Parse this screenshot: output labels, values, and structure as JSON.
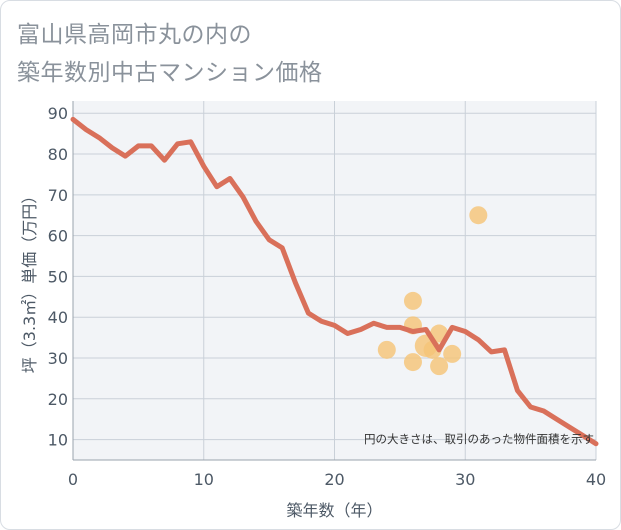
{
  "header": {
    "title_line1": "富山県高岡市丸の内の",
    "title_line2": "築年数別中古マンション価格"
  },
  "colors": {
    "line": "#d9705a",
    "point": "#f5c478",
    "grid": "#c9d0d8",
    "plot_bg": "#f2f4f7"
  },
  "chart_data": {
    "type": "line+scatter",
    "xlabel": "築年数（年）",
    "ylabel": "坪（3.3㎡）単価（万円）",
    "xlim": [
      0,
      40
    ],
    "ylim": [
      5,
      93
    ],
    "xticks": [
      0,
      10,
      20,
      30,
      40
    ],
    "yticks": [
      10,
      20,
      30,
      40,
      50,
      60,
      70,
      80,
      90
    ],
    "annotation": "円の大きさは、取引のあった物件面積を示す",
    "series": [
      {
        "name": "average-price",
        "type": "line",
        "x": [
          0,
          1,
          2,
          3,
          4,
          5,
          6,
          7,
          8,
          9,
          10,
          11,
          12,
          13,
          14,
          15,
          16,
          17,
          18,
          19,
          20,
          21,
          22,
          23,
          24,
          25,
          26,
          27,
          28,
          29,
          30,
          31,
          32,
          33,
          34,
          35,
          36,
          37,
          38,
          39,
          40
        ],
        "y": [
          88.5,
          86,
          84,
          81.5,
          79.5,
          82,
          82,
          78.5,
          82.5,
          83,
          77,
          72,
          74,
          69.5,
          63.5,
          59,
          57,
          48.5,
          41,
          39,
          38,
          36,
          37,
          38.5,
          37.5,
          37.5,
          36.5,
          37,
          32,
          37.5,
          36.5,
          34.5,
          31.5,
          32,
          22,
          18,
          17,
          15,
          13,
          11,
          9
        ]
      },
      {
        "name": "transactions",
        "type": "scatter",
        "points": [
          {
            "x": 24,
            "y": 32,
            "size": 1.0
          },
          {
            "x": 26,
            "y": 44,
            "size": 1.0
          },
          {
            "x": 26,
            "y": 38,
            "size": 1.0
          },
          {
            "x": 26,
            "y": 29,
            "size": 1.0
          },
          {
            "x": 27,
            "y": 33,
            "size": 1.25
          },
          {
            "x": 27.5,
            "y": 32,
            "size": 1.0
          },
          {
            "x": 28,
            "y": 36,
            "size": 1.0
          },
          {
            "x": 28,
            "y": 28,
            "size": 1.0
          },
          {
            "x": 29,
            "y": 31,
            "size": 1.0
          },
          {
            "x": 31,
            "y": 65,
            "size": 1.0
          }
        ]
      }
    ]
  }
}
